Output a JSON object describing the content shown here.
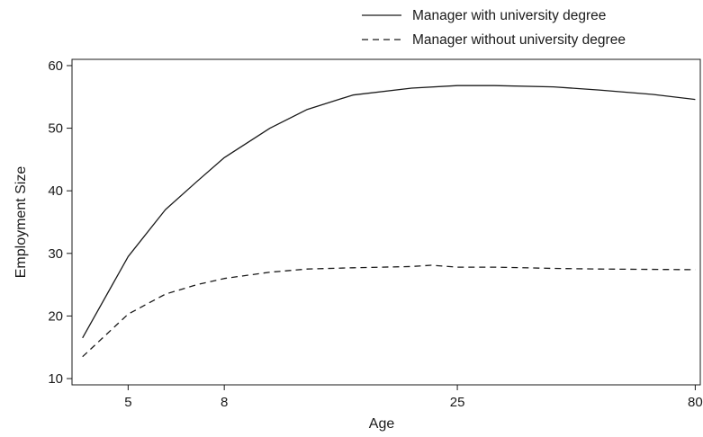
{
  "chart_data": {
    "type": "line",
    "xlabel": "Age",
    "ylabel": "Employment Size",
    "x_scale": "log",
    "xlim": [
      3.8,
      82
    ],
    "ylim": [
      9,
      61
    ],
    "x_ticks": [
      5,
      8,
      25,
      80
    ],
    "y_ticks": [
      10,
      20,
      30,
      40,
      50,
      60
    ],
    "grid": false,
    "legend_position": "top-right, outside plot",
    "series": [
      {
        "name": "Manager with university degree",
        "line_style": "solid",
        "points": [
          [
            4,
            16.5
          ],
          [
            5,
            29.5
          ],
          [
            6,
            37
          ],
          [
            7,
            41.5
          ],
          [
            8,
            45.3
          ],
          [
            10,
            50
          ],
          [
            12,
            53
          ],
          [
            15,
            55.3
          ],
          [
            20,
            56.4
          ],
          [
            25,
            56.8
          ],
          [
            30,
            56.8
          ],
          [
            40,
            56.6
          ],
          [
            50,
            56.1
          ],
          [
            65,
            55.4
          ],
          [
            80,
            54.6
          ]
        ]
      },
      {
        "name": "Manager without university degree",
        "line_style": "dashed",
        "points": [
          [
            4,
            13.5
          ],
          [
            5,
            20.3
          ],
          [
            6,
            23.5
          ],
          [
            7,
            25
          ],
          [
            8,
            26
          ],
          [
            10,
            27
          ],
          [
            12,
            27.5
          ],
          [
            15,
            27.7
          ],
          [
            20,
            27.9
          ],
          [
            22,
            28.1
          ],
          [
            25,
            27.8
          ],
          [
            30,
            27.8
          ],
          [
            40,
            27.6
          ],
          [
            50,
            27.5
          ],
          [
            80,
            27.4
          ]
        ]
      }
    ]
  },
  "colors": {
    "line": "#1a1a1a",
    "axis": "#1a1a1a",
    "background": "#ffffff"
  }
}
